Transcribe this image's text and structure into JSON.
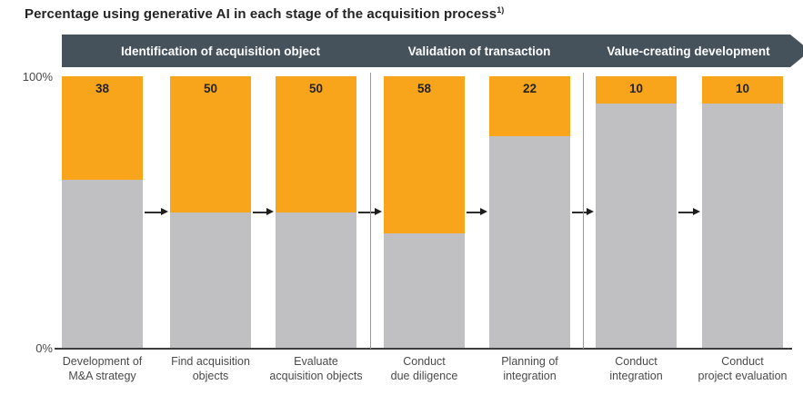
{
  "title": {
    "text": "Percentage using generative AI in each stage of the acquisition process",
    "superscript": "1)"
  },
  "axis": {
    "top_label": "100%",
    "bottom_label": "0%"
  },
  "chart_data": {
    "type": "bar",
    "stacked": true,
    "title": "Percentage using generative AI in each stage of the acquisition process",
    "title_superscript": "1)",
    "phases": [
      {
        "label": "Identification of acquisition object",
        "category_span": [
          0,
          2
        ]
      },
      {
        "label": "Validation of transaction",
        "category_span": [
          3,
          4
        ]
      },
      {
        "label": "Value-creating development",
        "category_span": [
          5,
          6
        ]
      }
    ],
    "categories": [
      "Development of\nM&A strategy",
      "Find acquisition\nobjects",
      "Evaluate\nacquisition objects",
      "Conduct\ndue diligence",
      "Planning of\nintegration",
      "Conduct\nintegration",
      "Conduct\nproject evaluation"
    ],
    "series": [
      {
        "name": "using-generative-ai",
        "color": "#F8A51C",
        "values": [
          38,
          50,
          50,
          58,
          22,
          10,
          10
        ]
      },
      {
        "name": "not-using-generative-ai",
        "color": "#C0C0C2",
        "values": [
          62,
          50,
          50,
          42,
          78,
          90,
          90
        ]
      }
    ],
    "value_labels": [
      38,
      50,
      50,
      58,
      22,
      10,
      10
    ],
    "ylim": [
      0,
      100
    ],
    "y_axis_labels": {
      "top": "100%",
      "bottom": "0%"
    },
    "grid": false,
    "legend": false
  },
  "colors": {
    "bar_orange": "#F8A51C",
    "bar_gray": "#C0C0C2",
    "phase_banner": "#45515B",
    "banner_text": "#ffffff",
    "axis_line": "#3d3d3d",
    "divider_line": "#9a9a9a",
    "arrow": "#2e2e2e",
    "title_text": "#242424",
    "label_text": "#4a4a4a"
  }
}
